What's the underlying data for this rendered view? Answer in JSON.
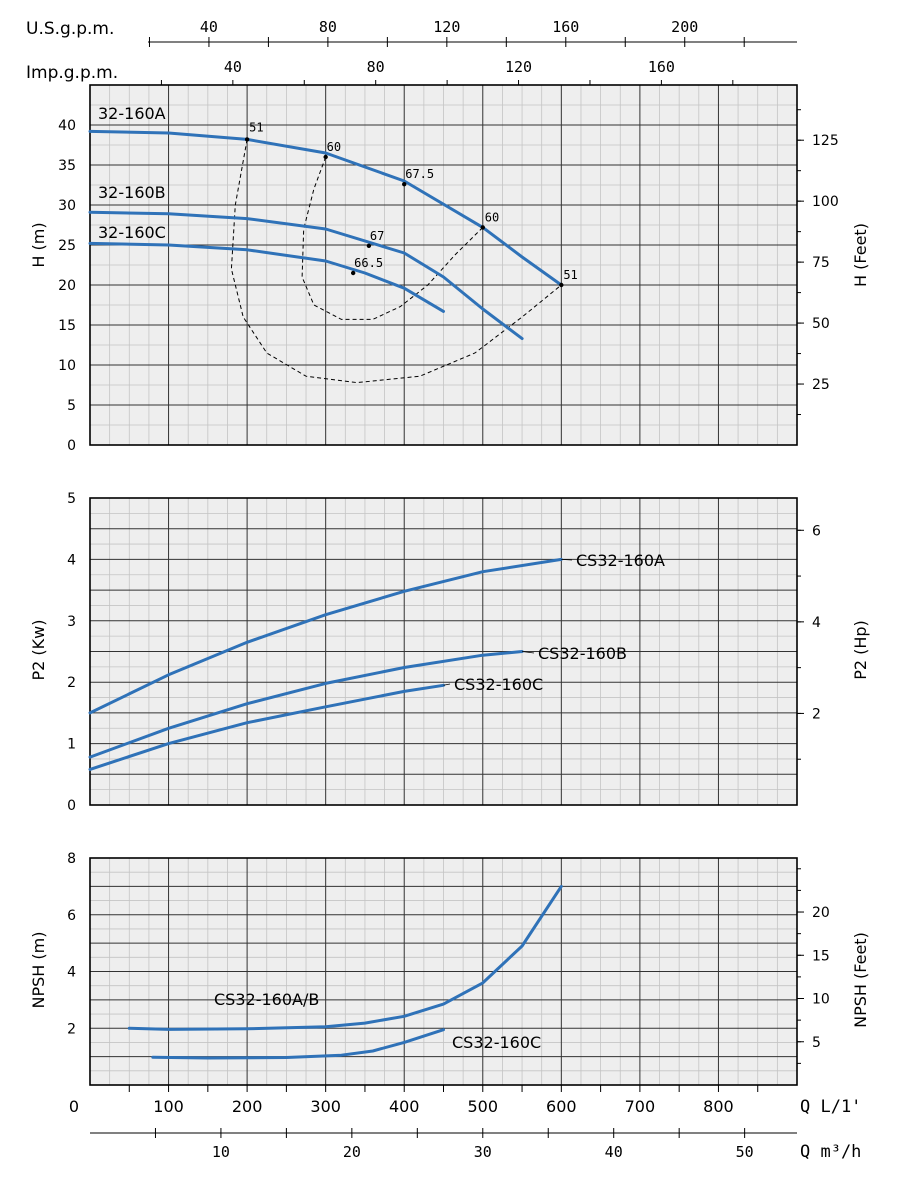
{
  "colors": {
    "curve": "#2f72b8",
    "plot_bg": "#eeeeee",
    "grid_major": "#333333",
    "grid_minor": "#c4c4c4",
    "efficiency": "#000000"
  },
  "top_axes": {
    "usgpm": {
      "label": "U.S.g.p.m.",
      "ticks": [
        "40",
        "80",
        "120",
        "160",
        "200"
      ]
    },
    "impgpm": {
      "label": "Imp.g.p.m.",
      "ticks": [
        "40",
        "80",
        "120",
        "160"
      ]
    }
  },
  "bottom_axes": {
    "q_lmin": {
      "label": "Q L/1'",
      "ticks": [
        "0",
        "100",
        "200",
        "300",
        "400",
        "500",
        "600",
        "700",
        "800"
      ]
    },
    "q_m3h": {
      "label": "Q m³/h",
      "ticks": [
        "10",
        "20",
        "30",
        "40",
        "50"
      ]
    }
  },
  "chart_data": [
    {
      "type": "line",
      "id": "head",
      "xlabel": "",
      "ylabel": "H (m)",
      "y2label": "H (Feet)",
      "xlim": [
        0,
        900
      ],
      "ylim": [
        0,
        45
      ],
      "y_ticks": [
        "0",
        "5",
        "10",
        "15",
        "20",
        "25",
        "30",
        "35",
        "40"
      ],
      "y2_ticks": [
        "25",
        "50",
        "75",
        "100",
        "125"
      ],
      "series": [
        {
          "name": "32-160A",
          "points": [
            [
              0,
              39.2
            ],
            [
              100,
              39.0
            ],
            [
              200,
              38.2
            ],
            [
              300,
              36.5
            ],
            [
              400,
              33.0
            ],
            [
              500,
              27.2
            ],
            [
              550,
              23.5
            ],
            [
              600,
              20.0
            ]
          ]
        },
        {
          "name": "32-160B",
          "points": [
            [
              0,
              29.1
            ],
            [
              100,
              28.9
            ],
            [
              200,
              28.3
            ],
            [
              300,
              27.0
            ],
            [
              400,
              24.0
            ],
            [
              450,
              21.0
            ],
            [
              500,
              17.0
            ],
            [
              550,
              13.3
            ]
          ]
        },
        {
          "name": "32-160C",
          "points": [
            [
              0,
              25.2
            ],
            [
              100,
              25.0
            ],
            [
              200,
              24.4
            ],
            [
              300,
              23.0
            ],
            [
              350,
              21.5
            ],
            [
              400,
              19.6
            ],
            [
              450,
              16.7
            ]
          ]
        }
      ],
      "efficiency_points": [
        {
          "label": "51",
          "q": 200,
          "h": 38.2
        },
        {
          "label": "60",
          "q": 300,
          "h": 36.0
        },
        {
          "label": "67.5",
          "q": 400,
          "h": 32.6
        },
        {
          "label": "60",
          "q": 500,
          "h": 27.2
        },
        {
          "label": "51",
          "q": 600,
          "h": 20.0
        },
        {
          "label": "67",
          "q": 355,
          "h": 24.9
        },
        {
          "label": "66.5",
          "q": 335,
          "h": 21.5
        }
      ],
      "efficiency_isolines": [
        {
          "label": "51",
          "points": [
            [
              200,
              38.2
            ],
            [
              185,
              30
            ],
            [
              180,
              22
            ],
            [
              195,
              16
            ],
            [
              225,
              11.5
            ],
            [
              275,
              8.6
            ],
            [
              340,
              7.8
            ],
            [
              420,
              8.6
            ],
            [
              490,
              11.5
            ],
            [
              550,
              16
            ],
            [
              600,
              20.0
            ]
          ]
        },
        {
          "label": "60",
          "points": [
            [
              300,
              36.0
            ],
            [
              285,
              32
            ],
            [
              272,
              27
            ],
            [
              270,
              21
            ],
            [
              285,
              17.5
            ],
            [
              320,
              15.7
            ],
            [
              360,
              15.7
            ],
            [
              395,
              17.3
            ],
            [
              430,
              20
            ],
            [
              465,
              23.8
            ],
            [
              500,
              27.2
            ]
          ]
        }
      ]
    },
    {
      "type": "line",
      "id": "power",
      "xlabel": "",
      "ylabel": "P2 (Kw)",
      "y2label": "P2 (Hp)",
      "xlim": [
        0,
        900
      ],
      "ylim": [
        0,
        5
      ],
      "y_ticks": [
        "0",
        "1",
        "2",
        "3",
        "4",
        "5"
      ],
      "y2_ticks": [
        "2",
        "4",
        "6"
      ],
      "series": [
        {
          "name": "CS32-160A",
          "points": [
            [
              0,
              1.5
            ],
            [
              100,
              2.12
            ],
            [
              200,
              2.65
            ],
            [
              300,
              3.1
            ],
            [
              400,
              3.48
            ],
            [
              500,
              3.8
            ],
            [
              600,
              4.0
            ]
          ]
        },
        {
          "name": "CS32-160B",
          "points": [
            [
              0,
              0.78
            ],
            [
              100,
              1.25
            ],
            [
              200,
              1.65
            ],
            [
              300,
              1.98
            ],
            [
              400,
              2.24
            ],
            [
              500,
              2.44
            ],
            [
              550,
              2.5
            ]
          ]
        },
        {
          "name": "CS32-160C",
          "points": [
            [
              0,
              0.58
            ],
            [
              100,
              1.0
            ],
            [
              200,
              1.34
            ],
            [
              300,
              1.6
            ],
            [
              400,
              1.85
            ],
            [
              450,
              1.95
            ]
          ]
        }
      ]
    },
    {
      "type": "line",
      "id": "npsh",
      "xlabel": "",
      "ylabel": "NPSH (m)",
      "y2label": "NPSH (Feet)",
      "xlim": [
        0,
        900
      ],
      "ylim": [
        0,
        8
      ],
      "y_ticks": [
        "2",
        "4",
        "6",
        "8"
      ],
      "y2_ticks": [
        "5",
        "10",
        "15",
        "20"
      ],
      "series": [
        {
          "name": "CS32-160A/B",
          "points": [
            [
              50,
              2.0
            ],
            [
              100,
              1.96
            ],
            [
              200,
              1.98
            ],
            [
              300,
              2.05
            ],
            [
              350,
              2.18
            ],
            [
              400,
              2.42
            ],
            [
              450,
              2.85
            ],
            [
              500,
              3.6
            ],
            [
              550,
              4.9
            ],
            [
              600,
              7.0
            ]
          ]
        },
        {
          "name": "CS32-160C",
          "points": [
            [
              80,
              0.98
            ],
            [
              150,
              0.95
            ],
            [
              250,
              0.97
            ],
            [
              320,
              1.05
            ],
            [
              360,
              1.2
            ],
            [
              400,
              1.5
            ],
            [
              450,
              1.95
            ]
          ]
        }
      ]
    }
  ]
}
